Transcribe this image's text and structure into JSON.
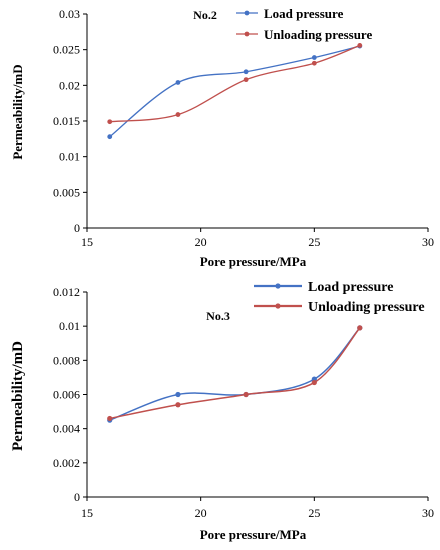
{
  "chart_data": [
    {
      "type": "line",
      "title": "No.2",
      "xlabel": "Pore pressure/MPa",
      "ylabel": "Permeability/mD",
      "xlim": [
        15,
        30
      ],
      "ylim": [
        0,
        0.03
      ],
      "xticks": [
        "15",
        "20",
        "25",
        "30"
      ],
      "yticks": [
        "0",
        "0.005",
        "0.01",
        "0.015",
        "0.02",
        "0.025",
        "0.03"
      ],
      "legend_position": "top-right",
      "grid": false,
      "series": [
        {
          "name": "Load pressure",
          "color": "#4472c4",
          "x": [
            16,
            19,
            22,
            25,
            27
          ],
          "y": [
            0.0128,
            0.0204,
            0.0219,
            0.0239,
            0.0255
          ]
        },
        {
          "name": "Unloading pressure",
          "color": "#c0504d",
          "x": [
            16,
            19,
            22,
            25,
            27
          ],
          "y": [
            0.0149,
            0.0159,
            0.0208,
            0.0231,
            0.0256
          ]
        }
      ]
    },
    {
      "type": "line",
      "title": "No.3",
      "xlabel": "Pore pressure/MPa",
      "ylabel": "Permeability/mD",
      "xlim": [
        15,
        30
      ],
      "ylim": [
        0,
        0.012
      ],
      "xticks": [
        "15",
        "20",
        "25",
        "30"
      ],
      "yticks": [
        "0",
        "0.002",
        "0.004",
        "0.006",
        "0.008",
        "0.01",
        "0.012"
      ],
      "legend_position": "top-right",
      "grid": false,
      "series": [
        {
          "name": "Load pressure",
          "color": "#4472c4",
          "x": [
            16,
            19,
            22,
            25,
            27
          ],
          "y": [
            0.0045,
            0.006,
            0.006,
            0.0069,
            0.0099
          ]
        },
        {
          "name": "Unloading pressure",
          "color": "#c0504d",
          "x": [
            16,
            19,
            22,
            25,
            27
          ],
          "y": [
            0.0046,
            0.0054,
            0.006,
            0.0067,
            0.0099
          ]
        }
      ]
    }
  ]
}
